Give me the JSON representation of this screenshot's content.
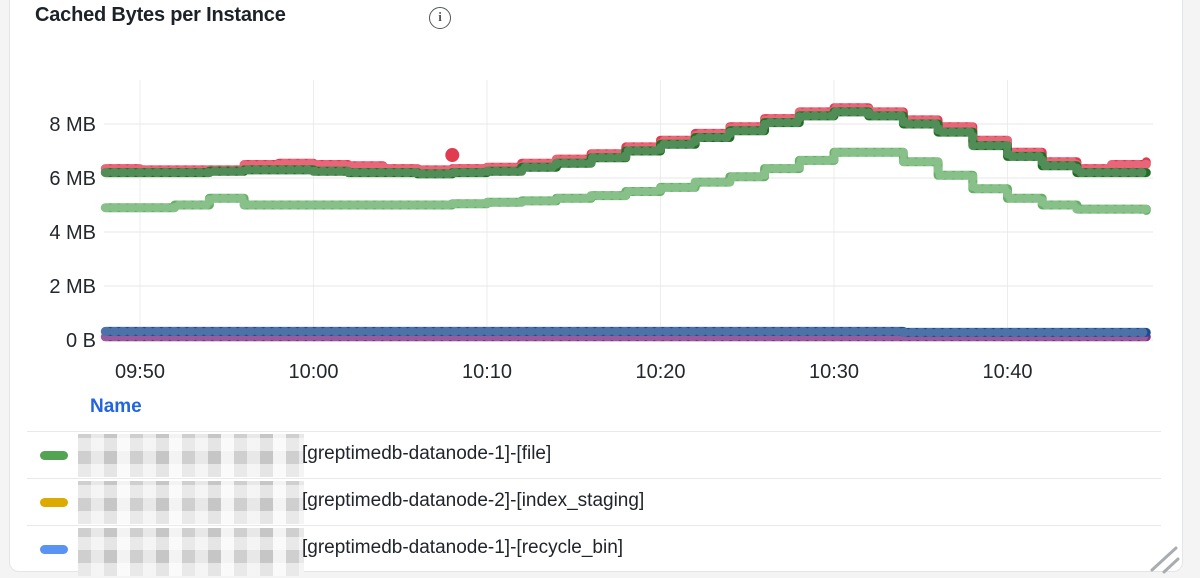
{
  "panel": {
    "title": "Cached Bytes per Instance",
    "info_icon_glyph": "i"
  },
  "chart_data": {
    "type": "line",
    "title": "Cached Bytes per Instance",
    "style": "stepped-thick-dotted",
    "grid": true,
    "y_unit_base": "bytes",
    "ylim_mb": [
      0,
      9.6
    ],
    "y_ticks": [
      {
        "label": "0 B",
        "value_mb": 0
      },
      {
        "label": "2 MB",
        "value_mb": 2
      },
      {
        "label": "4 MB",
        "value_mb": 4
      },
      {
        "label": "6 MB",
        "value_mb": 6
      },
      {
        "label": "8 MB",
        "value_mb": 8
      }
    ],
    "x_ticks": [
      {
        "label": "09:50",
        "minute": 590
      },
      {
        "label": "10:00",
        "minute": 600
      },
      {
        "label": "10:10",
        "minute": 610
      },
      {
        "label": "10:20",
        "minute": 620
      },
      {
        "label": "10:30",
        "minute": 630
      },
      {
        "label": "10:40",
        "minute": 640
      }
    ],
    "x_start_minute": 588,
    "x_step_minutes": 2,
    "series": [
      {
        "id": "red",
        "color": "#e13b51",
        "values_mb": [
          6.35,
          6.3,
          6.3,
          6.3,
          6.5,
          6.55,
          6.5,
          6.45,
          6.35,
          6.3,
          6.35,
          6.4,
          6.55,
          6.7,
          6.9,
          7.15,
          7.4,
          7.65,
          7.9,
          8.2,
          8.45,
          8.6,
          8.45,
          8.15,
          7.9,
          7.4,
          6.95,
          6.6,
          6.35,
          6.5,
          6.6
        ]
      },
      {
        "id": "dark-green",
        "color": "#216e27",
        "values_mb": [
          6.2,
          6.2,
          6.2,
          6.25,
          6.3,
          6.3,
          6.25,
          6.2,
          6.2,
          6.15,
          6.2,
          6.25,
          6.4,
          6.55,
          6.75,
          7.0,
          7.25,
          7.5,
          7.75,
          8.05,
          8.3,
          8.45,
          8.3,
          8.0,
          7.7,
          7.2,
          6.8,
          6.45,
          6.2,
          6.2,
          6.2
        ]
      },
      {
        "id": "light-green",
        "color": "#66af68",
        "values_mb": [
          4.9,
          4.9,
          5.0,
          5.25,
          5.0,
          5.0,
          5.0,
          5.0,
          5.0,
          5.0,
          5.05,
          5.1,
          5.15,
          5.25,
          5.35,
          5.5,
          5.65,
          5.85,
          6.05,
          6.35,
          6.65,
          6.95,
          6.95,
          6.6,
          6.1,
          5.6,
          5.25,
          5.0,
          4.85,
          4.85,
          4.8
        ]
      },
      {
        "id": "purple",
        "color": "#7b2e83",
        "values_mb": [
          0.12,
          0.12,
          0.12,
          0.12,
          0.12,
          0.12,
          0.12,
          0.12,
          0.12,
          0.12,
          0.12,
          0.12,
          0.12,
          0.12,
          0.12,
          0.12,
          0.12,
          0.12,
          0.12,
          0.12,
          0.12,
          0.12,
          0.12,
          0.12,
          0.12,
          0.12,
          0.12,
          0.12,
          0.12,
          0.12,
          0.12
        ]
      },
      {
        "id": "navy-blue",
        "color": "#1c4b8f",
        "values_mb": [
          0.32,
          0.32,
          0.32,
          0.32,
          0.32,
          0.32,
          0.32,
          0.32,
          0.32,
          0.32,
          0.32,
          0.32,
          0.32,
          0.32,
          0.32,
          0.32,
          0.32,
          0.32,
          0.32,
          0.32,
          0.32,
          0.32,
          0.32,
          0.28,
          0.28,
          0.28,
          0.28,
          0.28,
          0.28,
          0.28,
          0.28
        ]
      }
    ],
    "outlier_point": {
      "series": "red",
      "minute": 608,
      "value_mb": 6.85,
      "color": "#e13b51"
    },
    "axis_text_color": "#23282d",
    "gridline_color": "#e7e7e7"
  },
  "legend": {
    "header": "Name",
    "header_color": "#2165e0",
    "rows": [
      {
        "swatch_color": "#52a352",
        "name_prefix_redacted": true,
        "label": "[greptimedb-datanode-1]-[file]"
      },
      {
        "swatch_color": "#ddab00",
        "name_prefix_redacted": true,
        "label": "[greptimedb-datanode-2]-[index_staging]"
      },
      {
        "swatch_color": "#5b93f5",
        "name_prefix_redacted": true,
        "label": "[greptimedb-datanode-1]-[recycle_bin]"
      }
    ]
  }
}
